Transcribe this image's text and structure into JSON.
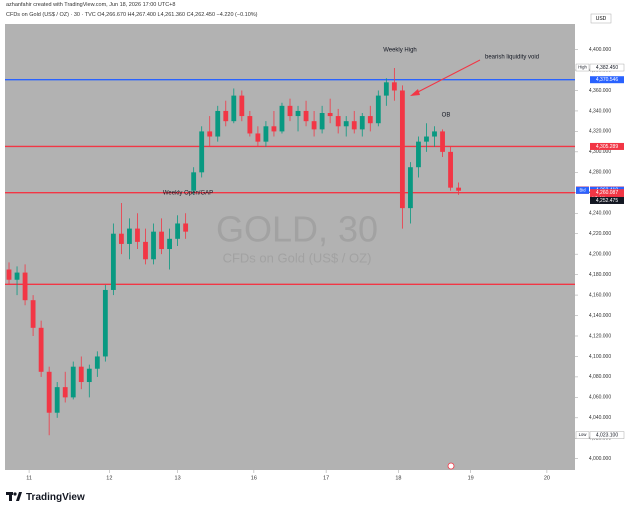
{
  "header": {
    "credit": "azhanfahir created with TradingView.com, Jun 18, 2026 17:00 UTC+8",
    "symbol_line": "CFDs on Gold (US$ / OZ) · 30 · TVC  O4,266.670 H4,267.400 L4,261.360 C4,262.450 −4.220 (−0.10%)"
  },
  "chart_data": {
    "type": "candlestick",
    "watermark_title": "GOLD, 30",
    "watermark_subtitle": "CFDs on Gold (US$ / OZ)",
    "currency": "USD",
    "up_color": "#089981",
    "down_color": "#f23645",
    "background": "#b2b2b2",
    "open": [
      4185,
      4175,
      4182,
      4155,
      4128,
      4085,
      4045,
      4070,
      4060,
      4090,
      4075,
      4088,
      4100,
      4165,
      4220,
      4210,
      4225,
      4212,
      4195,
      4222,
      4205,
      4215,
      4230,
      4262,
      4280,
      4320,
      4315,
      4340,
      4330,
      4355,
      4335,
      4318,
      4310,
      4325,
      4320,
      4345,
      4335,
      4340,
      4330,
      4322,
      4338,
      4335,
      4325,
      4330,
      4322,
      4335,
      4328,
      4355,
      4368,
      4360,
      4245,
      4285,
      4310,
      4315,
      4320,
      4300,
      4265
    ],
    "high": [
      4192,
      4188,
      4190,
      4160,
      4135,
      4090,
      4075,
      4085,
      4095,
      4100,
      4092,
      4105,
      4170,
      4230,
      4250,
      4235,
      4240,
      4225,
      4230,
      4235,
      4225,
      4238,
      4240,
      4285,
      4325,
      4335,
      4345,
      4350,
      4362,
      4360,
      4340,
      4325,
      4330,
      4340,
      4348,
      4352,
      4345,
      4350,
      4340,
      4345,
      4352,
      4342,
      4335,
      4340,
      4338,
      4345,
      4360,
      4372,
      4382,
      4365,
      4290,
      4315,
      4328,
      4325,
      4322,
      4305,
      4270
    ],
    "low": [
      4170,
      4160,
      4150,
      4120,
      4080,
      4023,
      4040,
      4055,
      4058,
      4068,
      4060,
      4080,
      4095,
      4160,
      4200,
      4195,
      4205,
      4190,
      4190,
      4200,
      4185,
      4208,
      4215,
      4258,
      4275,
      4305,
      4310,
      4325,
      4328,
      4330,
      4315,
      4305,
      4305,
      4315,
      4318,
      4330,
      4320,
      4325,
      4315,
      4318,
      4328,
      4318,
      4315,
      4318,
      4315,
      4320,
      4325,
      4345,
      4350,
      4225,
      4230,
      4275,
      4300,
      4305,
      4295,
      4262,
      4258
    ],
    "close": [
      4175,
      4182,
      4155,
      4128,
      4085,
      4045,
      4070,
      4060,
      4090,
      4075,
      4088,
      4100,
      4165,
      4220,
      4210,
      4225,
      4212,
      4195,
      4222,
      4205,
      4215,
      4230,
      4222,
      4280,
      4320,
      4315,
      4340,
      4330,
      4355,
      4335,
      4318,
      4310,
      4325,
      4320,
      4345,
      4335,
      4340,
      4330,
      4322,
      4338,
      4335,
      4325,
      4330,
      4322,
      4335,
      4328,
      4355,
      4368,
      4360,
      4245,
      4285,
      4310,
      4315,
      4320,
      4300,
      4265,
      4262
    ],
    "xlim": [
      0,
      71
    ],
    "xticks": [
      {
        "value": 3,
        "label": "11"
      },
      {
        "value": 13,
        "label": "12"
      },
      {
        "value": 21.5,
        "label": "13"
      },
      {
        "value": 31,
        "label": "16"
      },
      {
        "value": 40,
        "label": "17"
      },
      {
        "value": 49,
        "label": "18"
      },
      {
        "value": 58,
        "label": "19"
      },
      {
        "value": 67.5,
        "label": "20"
      }
    ],
    "ylim": [
      3989,
      4425
    ],
    "yticks": [
      {
        "value": 4000,
        "label": "4,000.000"
      },
      {
        "value": 4020,
        "label": "4,020.000"
      },
      {
        "value": 4040,
        "label": "4,040.000"
      },
      {
        "value": 4060,
        "label": "4,060.000"
      },
      {
        "value": 4080,
        "label": "4,080.000"
      },
      {
        "value": 4100,
        "label": "4,100.000"
      },
      {
        "value": 4120,
        "label": "4,120.000"
      },
      {
        "value": 4140,
        "label": "4,140.000"
      },
      {
        "value": 4160,
        "label": "4,160.000"
      },
      {
        "value": 4180,
        "label": "4,180.000"
      },
      {
        "value": 4200,
        "label": "4,200.000"
      },
      {
        "value": 4220,
        "label": "4,220.000"
      },
      {
        "value": 4240,
        "label": "4,240.000"
      },
      {
        "value": 4260,
        "label": "4,260.000"
      },
      {
        "value": 4280,
        "label": "4,280.000"
      },
      {
        "value": 4300,
        "label": "4,300.000"
      },
      {
        "value": 4320,
        "label": "4,320.000"
      },
      {
        "value": 4340,
        "label": "4,340.000"
      },
      {
        "value": 4360,
        "label": "4,360.000"
      },
      {
        "value": 4380,
        "label": "4,380.000"
      },
      {
        "value": 4400,
        "label": "4,400.000"
      }
    ],
    "levels": [
      {
        "value": 4370.546,
        "color": "#2962ff"
      },
      {
        "value": 4305.289,
        "color": "#f23645"
      },
      {
        "value": 4260.087,
        "color": "#f23645"
      },
      {
        "value": 4170.518,
        "color": "#f23645"
      }
    ],
    "price_labels": [
      {
        "tag": "High",
        "value": 4382.45,
        "label": "4,382.450",
        "color": "#ffffff"
      },
      {
        "value": 4370.546,
        "label": "4,370.546",
        "color": "#2962ff"
      },
      {
        "value": 4305.289,
        "label": "4,305.289",
        "color": "#f23645"
      },
      {
        "tag": "Ask",
        "value": 4262.73,
        "label": "4,262.730",
        "color": "#f23645"
      },
      {
        "tag": "GOLD",
        "value": 4262.45,
        "label": "4,262.450",
        "extra": "24:15",
        "color": "#f23645"
      },
      {
        "tag": "Bid",
        "value": 4262.41,
        "label": "4,262.410",
        "color": "#2962ff"
      },
      {
        "value": 4260.087,
        "label": "4,260.087",
        "color": "#f23645"
      },
      {
        "value": 4252.475,
        "label": "4,252.475",
        "color": "#131722"
      },
      {
        "tag": "Low",
        "value": 4023.1,
        "label": "4,023.100",
        "color": "#ffffff"
      }
    ],
    "annotations": [
      "Weekly High",
      "bearish liquidity void",
      "OB",
      "Weekly Open/GAP"
    ]
  },
  "footer": {
    "brand": "TradingView"
  }
}
